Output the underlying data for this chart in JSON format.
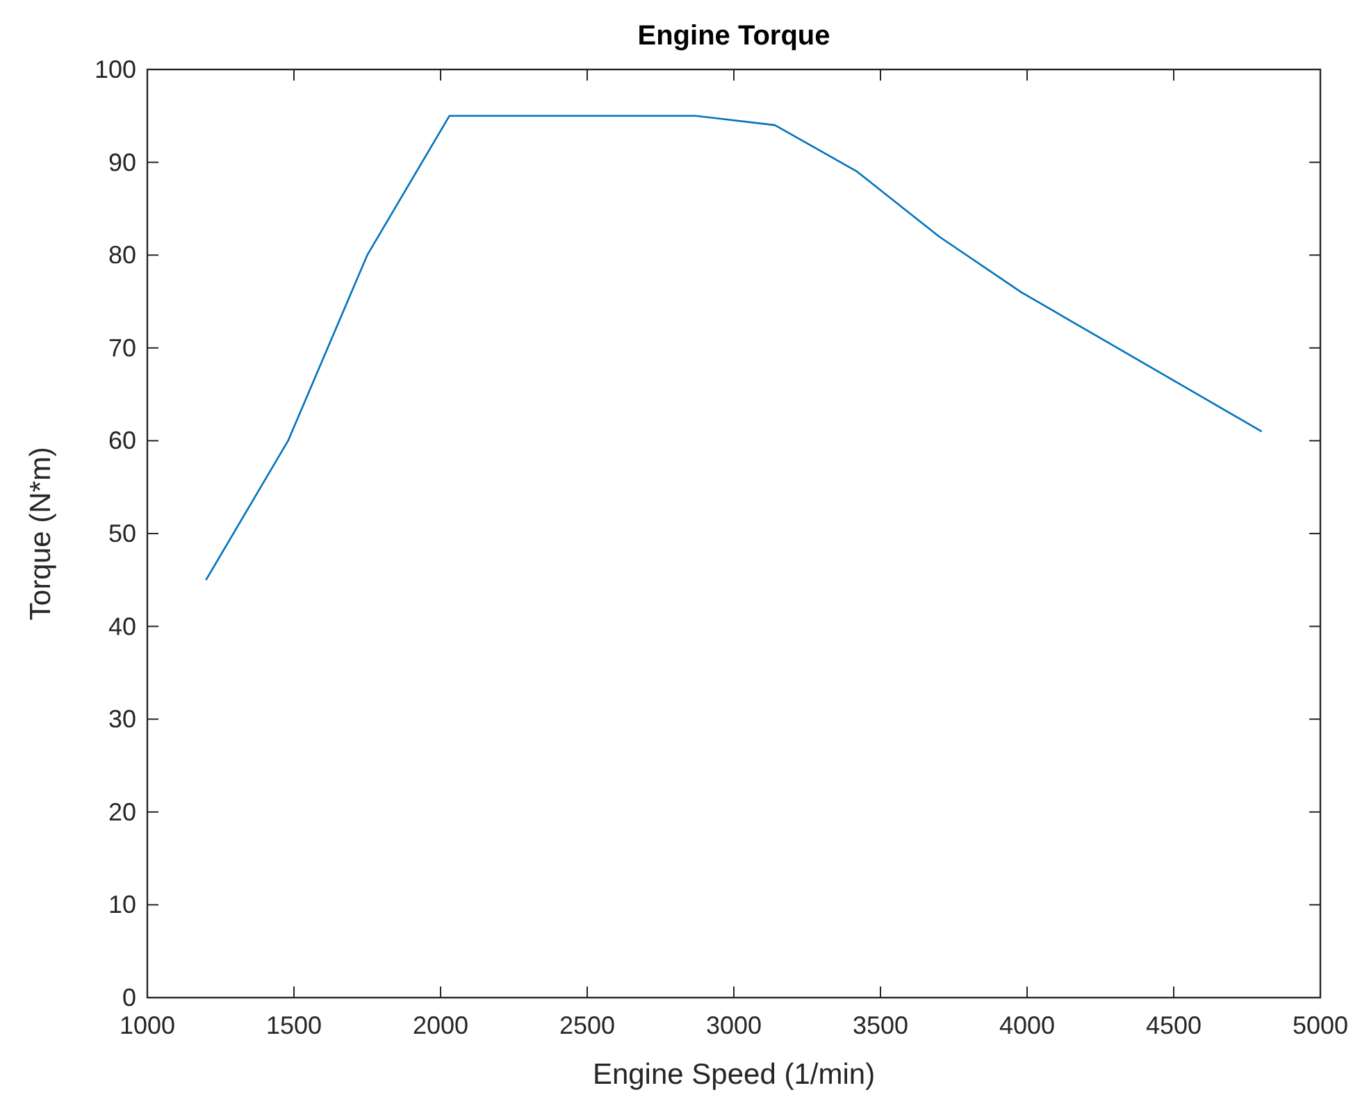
{
  "chart_data": {
    "type": "line",
    "title": "Engine Torque",
    "xlabel": "Engine Speed (1/min)",
    "ylabel": "Torque (N*m)",
    "x": [
      1200,
      1480,
      1750,
      2030,
      2870,
      3140,
      3420,
      3700,
      3980,
      4800
    ],
    "series": [
      {
        "color": "#0072bd",
        "values": [
          45,
          60,
          80,
          95,
          95,
          94,
          89,
          82,
          76,
          61
        ]
      }
    ],
    "xlim": [
      1000,
      5000
    ],
    "xticks": [
      1000,
      1500,
      2000,
      2500,
      3000,
      3500,
      4000,
      4500,
      5000
    ],
    "ylim": [
      0,
      100
    ],
    "yticks": [
      0,
      10,
      20,
      30,
      40,
      50,
      60,
      70,
      80,
      90,
      100
    ],
    "marker": "none",
    "line_style": "solid"
  }
}
